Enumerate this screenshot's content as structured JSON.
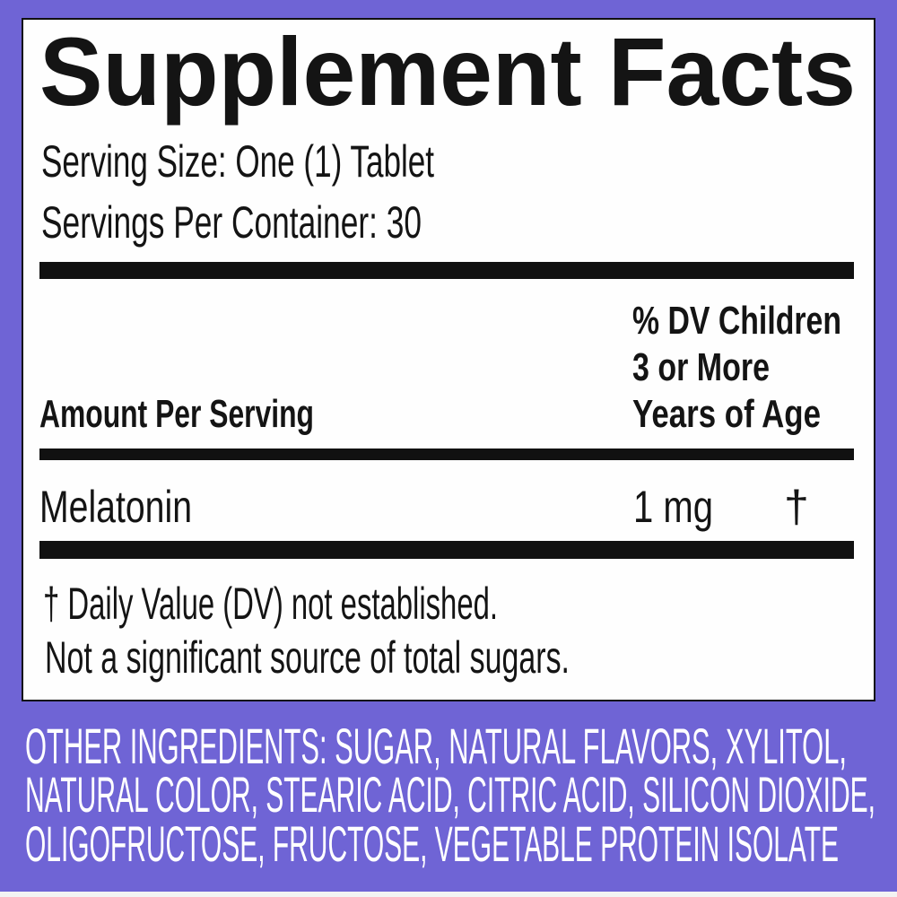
{
  "facts": {
    "title": "Supplement Facts",
    "serving_size": "Serving Size: One (1) Tablet",
    "servings_per_container": "Servings Per Container: 30",
    "amount_header": "Amount Per Serving",
    "dv_header": [
      "% DV Children",
      "3 or More",
      "Years of Age"
    ],
    "rows": [
      {
        "name": "Melatonin",
        "amount": "1 mg",
        "dv": "†"
      }
    ],
    "footnotes": [
      "† Daily Value (DV) not established.",
      "Not a significant source of total sugars."
    ]
  },
  "other_ingredients": [
    "OTHER INGREDIENTS: SUGAR, NATURAL FLAVORS, XYLITOL,",
    "NATURAL COLOR, STEARIC ACID, CITRIC ACID, SILICON DIOXIDE,",
    "OLIGOFRUCTOSE, FRUCTOSE, VEGETABLE PROTEIN ISOLATE"
  ],
  "colors": {
    "background": "#6f64d5",
    "panel": "#fefefe",
    "text": "#141414"
  }
}
